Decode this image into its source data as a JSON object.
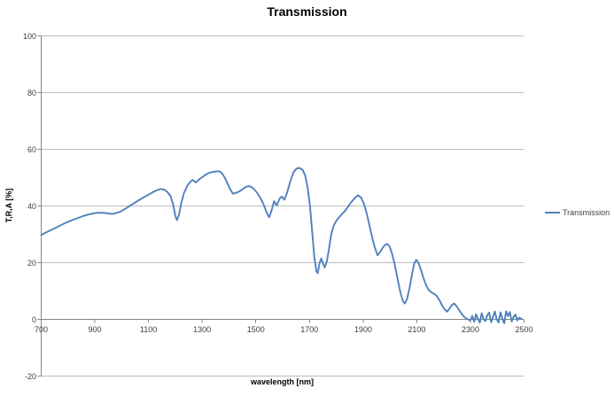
{
  "chart_data": {
    "type": "line",
    "title": "Transmission",
    "xlabel": "wavelength [nm]",
    "ylabel": "T,R,A [%]",
    "xlim": [
      700,
      2500
    ],
    "ylim": [
      -20,
      100
    ],
    "x_ticks": [
      700,
      900,
      1100,
      1300,
      1500,
      1700,
      1900,
      2100,
      2300,
      2500
    ],
    "y_ticks": [
      100,
      80,
      60,
      40,
      20,
      0,
      -20
    ],
    "grid": "horizontal",
    "legend_position": "right",
    "colors": {
      "series_blue": "#4f81bd",
      "gridline_gray": "#bdbdbd",
      "axis_gray": "#868686",
      "tick_text": "#3f3f3f",
      "background": "#ffffff"
    },
    "series": [
      {
        "name": "Transmission",
        "color": "#4f81bd",
        "points": [
          [
            700,
            29.8
          ],
          [
            715,
            30.5
          ],
          [
            730,
            31.2
          ],
          [
            745,
            31.9
          ],
          [
            760,
            32.6
          ],
          [
            775,
            33.3
          ],
          [
            790,
            34.0
          ],
          [
            805,
            34.6
          ],
          [
            820,
            35.2
          ],
          [
            835,
            35.7
          ],
          [
            850,
            36.2
          ],
          [
            865,
            36.7
          ],
          [
            880,
            37.1
          ],
          [
            895,
            37.4
          ],
          [
            910,
            37.6
          ],
          [
            925,
            37.6
          ],
          [
            940,
            37.5
          ],
          [
            955,
            37.3
          ],
          [
            965,
            37.2
          ],
          [
            980,
            37.5
          ],
          [
            995,
            38.0
          ],
          [
            1010,
            38.8
          ],
          [
            1025,
            39.7
          ],
          [
            1040,
            40.6
          ],
          [
            1055,
            41.5
          ],
          [
            1070,
            42.4
          ],
          [
            1085,
            43.2
          ],
          [
            1100,
            44.0
          ],
          [
            1115,
            44.8
          ],
          [
            1130,
            45.5
          ],
          [
            1145,
            46.0
          ],
          [
            1158,
            45.8
          ],
          [
            1170,
            45.0
          ],
          [
            1182,
            43.5
          ],
          [
            1192,
            40.5
          ],
          [
            1200,
            36.5
          ],
          [
            1206,
            35.0
          ],
          [
            1214,
            37.0
          ],
          [
            1222,
            41.0
          ],
          [
            1232,
            44.5
          ],
          [
            1243,
            46.8
          ],
          [
            1255,
            48.5
          ],
          [
            1264,
            49.2
          ],
          [
            1276,
            48.3
          ],
          [
            1288,
            49.3
          ],
          [
            1302,
            50.3
          ],
          [
            1316,
            51.2
          ],
          [
            1330,
            51.8
          ],
          [
            1345,
            52.1
          ],
          [
            1360,
            52.3
          ],
          [
            1372,
            51.8
          ],
          [
            1384,
            50.0
          ],
          [
            1395,
            47.8
          ],
          [
            1405,
            45.8
          ],
          [
            1415,
            44.3
          ],
          [
            1428,
            44.7
          ],
          [
            1440,
            45.2
          ],
          [
            1452,
            46.0
          ],
          [
            1464,
            46.8
          ],
          [
            1476,
            47.0
          ],
          [
            1490,
            46.3
          ],
          [
            1502,
            45.0
          ],
          [
            1515,
            43.2
          ],
          [
            1528,
            40.8
          ],
          [
            1540,
            37.8
          ],
          [
            1550,
            36.0
          ],
          [
            1560,
            38.8
          ],
          [
            1568,
            41.7
          ],
          [
            1578,
            40.2
          ],
          [
            1590,
            42.8
          ],
          [
            1597,
            43.3
          ],
          [
            1606,
            42.2
          ],
          [
            1616,
            44.5
          ],
          [
            1628,
            48.5
          ],
          [
            1640,
            51.8
          ],
          [
            1652,
            53.2
          ],
          [
            1663,
            53.4
          ],
          [
            1674,
            52.8
          ],
          [
            1684,
            50.8
          ],
          [
            1694,
            46.0
          ],
          [
            1702,
            40.0
          ],
          [
            1710,
            31.0
          ],
          [
            1718,
            22.0
          ],
          [
            1726,
            17.0
          ],
          [
            1731,
            16.3
          ],
          [
            1738,
            20.0
          ],
          [
            1744,
            21.5
          ],
          [
            1751,
            19.5
          ],
          [
            1757,
            18.3
          ],
          [
            1765,
            20.5
          ],
          [
            1773,
            25.0
          ],
          [
            1781,
            30.0
          ],
          [
            1791,
            33.2
          ],
          [
            1801,
            34.9
          ],
          [
            1811,
            36.1
          ],
          [
            1821,
            37.1
          ],
          [
            1833,
            38.3
          ],
          [
            1845,
            39.9
          ],
          [
            1858,
            41.6
          ],
          [
            1870,
            42.9
          ],
          [
            1881,
            43.8
          ],
          [
            1893,
            42.9
          ],
          [
            1904,
            40.5
          ],
          [
            1914,
            37.2
          ],
          [
            1924,
            33.0
          ],
          [
            1934,
            28.8
          ],
          [
            1944,
            25.2
          ],
          [
            1954,
            22.6
          ],
          [
            1963,
            23.7
          ],
          [
            1972,
            25.1
          ],
          [
            1981,
            26.2
          ],
          [
            1990,
            26.6
          ],
          [
            1999,
            25.7
          ],
          [
            2009,
            22.8
          ],
          [
            2019,
            18.8
          ],
          [
            2029,
            14.0
          ],
          [
            2039,
            9.5
          ],
          [
            2049,
            6.3
          ],
          [
            2056,
            5.6
          ],
          [
            2064,
            7.3
          ],
          [
            2074,
            11.5
          ],
          [
            2083,
            16.3
          ],
          [
            2091,
            19.8
          ],
          [
            2098,
            21.0
          ],
          [
            2106,
            20.1
          ],
          [
            2115,
            17.6
          ],
          [
            2125,
            14.6
          ],
          [
            2135,
            12.0
          ],
          [
            2145,
            10.3
          ],
          [
            2155,
            9.5
          ],
          [
            2165,
            9.0
          ],
          [
            2175,
            8.2
          ],
          [
            2185,
            6.7
          ],
          [
            2195,
            4.8
          ],
          [
            2205,
            3.4
          ],
          [
            2213,
            2.7
          ],
          [
            2222,
            3.8
          ],
          [
            2231,
            5.1
          ],
          [
            2239,
            5.6
          ],
          [
            2249,
            4.6
          ],
          [
            2259,
            3.1
          ],
          [
            2269,
            1.7
          ],
          [
            2279,
            0.7
          ],
          [
            2289,
            0.1
          ],
          [
            2299,
            -0.4
          ],
          [
            2307,
            1.2
          ],
          [
            2314,
            -0.9
          ],
          [
            2321,
            1.8
          ],
          [
            2328,
            0.2
          ],
          [
            2335,
            -1.2
          ],
          [
            2342,
            2.2
          ],
          [
            2349,
            0.1
          ],
          [
            2356,
            -0.6
          ],
          [
            2363,
            1.5
          ],
          [
            2370,
            2.4
          ],
          [
            2377,
            -1.0
          ],
          [
            2384,
            0.8
          ],
          [
            2391,
            2.8
          ],
          [
            2398,
            0.0
          ],
          [
            2405,
            -1.1
          ],
          [
            2412,
            2.5
          ],
          [
            2419,
            0.3
          ],
          [
            2426,
            -1.4
          ],
          [
            2433,
            2.9
          ],
          [
            2440,
            1.1
          ],
          [
            2447,
            2.6
          ],
          [
            2454,
            -0.8
          ],
          [
            2461,
            0.9
          ],
          [
            2468,
            1.7
          ],
          [
            2475,
            -0.4
          ],
          [
            2482,
            0.6
          ],
          [
            2490,
            0.2
          ]
        ]
      }
    ]
  }
}
